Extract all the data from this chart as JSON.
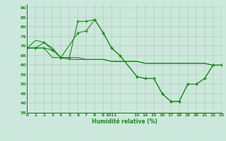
{
  "xlabel": "Humidité relative (%)",
  "bg_color": "#cce8dc",
  "line_color": "#1a8c1a",
  "ylim": [
    35,
    92
  ],
  "yticks": [
    35,
    40,
    45,
    50,
    55,
    60,
    65,
    70,
    75,
    80,
    85,
    90
  ],
  "xlim": [
    0,
    23
  ],
  "line1_x": [
    0,
    1,
    2,
    3,
    4,
    5,
    6,
    7,
    8,
    9,
    10,
    11,
    13,
    14,
    15,
    16,
    17,
    18,
    19,
    20,
    21,
    22,
    23
  ],
  "line1_y": [
    69,
    73,
    72,
    69,
    64,
    63,
    63,
    63,
    63,
    63,
    62,
    62,
    62,
    61,
    61,
    61,
    61,
    61,
    61,
    61,
    61,
    60,
    60
  ],
  "line2_x": [
    0,
    1,
    2,
    3,
    4,
    6,
    7,
    8,
    9,
    10,
    11,
    13,
    14,
    15,
    16,
    17,
    18,
    19,
    20,
    21,
    22,
    23
  ],
  "line2_y": [
    69,
    69,
    69,
    68,
    64,
    77,
    78,
    84,
    77,
    69,
    65,
    54,
    53,
    53,
    45,
    41,
    41,
    50,
    50,
    53,
    60,
    60
  ],
  "line3_x": [
    0,
    1,
    2,
    3,
    4,
    5,
    6,
    7,
    8,
    9,
    10,
    11,
    13,
    14,
    15,
    16,
    17,
    18,
    19,
    20,
    21,
    22,
    23
  ],
  "line3_y": [
    69,
    69,
    72,
    68,
    64,
    64,
    83,
    83,
    84,
    77,
    69,
    65,
    54,
    53,
    53,
    45,
    41,
    41,
    50,
    50,
    53,
    60,
    60
  ],
  "line4_x": [
    0,
    1,
    2,
    3,
    4,
    5,
    6,
    7,
    8,
    9,
    10,
    11,
    13,
    14,
    15,
    16,
    17,
    18,
    19,
    20,
    21,
    22,
    23
  ],
  "line4_y": [
    69,
    69,
    69,
    64,
    64,
    64,
    64,
    63,
    63,
    63,
    62,
    62,
    62,
    61,
    61,
    61,
    61,
    61,
    61,
    61,
    61,
    60,
    60
  ],
  "xtick_pos": [
    0,
    1,
    2,
    3,
    4,
    5,
    6,
    7,
    8,
    9,
    10,
    11,
    13,
    14,
    15,
    16,
    17,
    18,
    19,
    20,
    21,
    22,
    23
  ],
  "xtick_lab": [
    "0",
    "1",
    "2",
    "3",
    "4",
    "5",
    "6",
    "7",
    "8",
    "9",
    "1011",
    "",
    "13",
    "14",
    "15",
    "16",
    "17",
    "18",
    "19",
    "20",
    "21",
    "22",
    "23"
  ]
}
